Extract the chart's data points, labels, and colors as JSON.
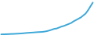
{
  "x": [
    1970,
    1971,
    1972,
    1973,
    1974,
    1975,
    1976,
    1977,
    1978,
    1979,
    1980,
    1981,
    1982,
    1983,
    1984,
    1985,
    1986,
    1987,
    1988,
    1989,
    1990,
    1991,
    1992,
    1993,
    1994,
    1995,
    1996,
    1997,
    1998,
    1999,
    2000,
    2001,
    2002,
    2003,
    2004,
    2005,
    2006,
    2007,
    2008
  ],
  "y": [
    1,
    1.1,
    1.2,
    1.4,
    1.6,
    1.7,
    1.9,
    2.1,
    2.3,
    2.6,
    3.0,
    3.3,
    3.6,
    3.8,
    4.1,
    4.4,
    4.6,
    4.8,
    5.3,
    6.0,
    7.0,
    8.2,
    9.5,
    10.0,
    11.5,
    13.0,
    14.0,
    15.5,
    17.0,
    18.5,
    21.0,
    23.0,
    25.0,
    27.0,
    30.0,
    33.0,
    38.0,
    44.0,
    50.0
  ],
  "line_color": "#3da8d8",
  "line_width": 1.4,
  "background_color": "#ffffff",
  "ylim": [
    0,
    54
  ],
  "xlim": [
    1969.5,
    2008.5
  ]
}
